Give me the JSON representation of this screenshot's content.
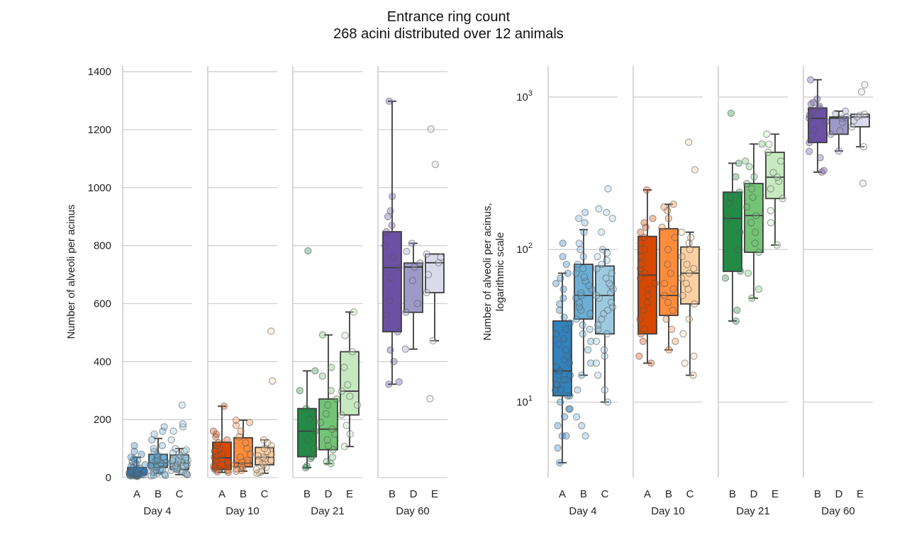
{
  "title": [
    "Entrance ring count",
    "268 acini distributed over 12 animals"
  ],
  "chart_data": [
    {
      "type": "box",
      "scale": "linear",
      "ylabel": "Number of alveoli per acinus",
      "ylim": [
        0,
        1420
      ],
      "yticks": [
        0,
        200,
        400,
        600,
        800,
        1000,
        1200,
        1400
      ],
      "ytick_labels": [
        "0",
        "200",
        "400",
        "600",
        "800",
        "1000",
        "1200",
        "1400"
      ],
      "grid": true
    },
    {
      "type": "box",
      "scale": "log",
      "ylabel": [
        "Number of alveoli per acinus,",
        "logarithmic scale"
      ],
      "ylim": [
        3.2,
        1600
      ],
      "yticks": [
        10,
        100,
        1000
      ],
      "ytick_labels": [
        "10",
        "10",
        "10"
      ],
      "ytick_exponents": [
        "1",
        "2",
        "3"
      ],
      "grid": true
    }
  ],
  "panels": [
    {
      "day": "Day 4",
      "groups": [
        {
          "label": "A",
          "color": "#3182bd",
          "stats": {
            "whislo": 4,
            "q1": 11,
            "med": 16,
            "q3": 34,
            "whishi": 70
          },
          "points": [
            4,
            5,
            6,
            6,
            7,
            8,
            9,
            9,
            10,
            11,
            11,
            12,
            12,
            13,
            13,
            14,
            14,
            15,
            15,
            16,
            16,
            17,
            18,
            19,
            20,
            22,
            24,
            26,
            28,
            30,
            33,
            36,
            40,
            44,
            48,
            55,
            60,
            65,
            70,
            80,
            90,
            110
          ]
        },
        {
          "label": "B",
          "color": "#6baed6",
          "stats": {
            "whislo": 15,
            "q1": 35,
            "med": 50,
            "q3": 80,
            "whishi": 135
          },
          "points": [
            6,
            7,
            8,
            12,
            15,
            18,
            22,
            25,
            28,
            30,
            32,
            35,
            38,
            40,
            42,
            45,
            48,
            50,
            52,
            55,
            58,
            62,
            66,
            70,
            75,
            80,
            90,
            100,
            110,
            130,
            150,
            160,
            175
          ]
        },
        {
          "label": "C",
          "color": "#9ecae1",
          "stats": {
            "whislo": 10,
            "q1": 28,
            "med": 50,
            "q3": 78,
            "whishi": 100
          },
          "points": [
            10,
            12,
            15,
            18,
            20,
            22,
            25,
            28,
            30,
            32,
            35,
            38,
            40,
            42,
            45,
            48,
            50,
            52,
            55,
            58,
            60,
            65,
            70,
            75,
            80,
            85,
            90,
            95,
            100,
            130,
            160,
            175,
            185,
            250
          ]
        }
      ]
    },
    {
      "day": "Day 10",
      "groups": [
        {
          "label": "A",
          "color": "#d94801",
          "stats": {
            "whislo": 18,
            "q1": 28,
            "med": 68,
            "q3": 122,
            "whishi": 246
          },
          "points": [
            18,
            20,
            25,
            28,
            30,
            35,
            40,
            45,
            50,
            55,
            60,
            65,
            70,
            75,
            80,
            90,
            100,
            110,
            120,
            130,
            140,
            150,
            160,
            246
          ]
        },
        {
          "label": "B",
          "color": "#fd8d3c",
          "stats": {
            "whislo": 22,
            "q1": 37,
            "med": 50,
            "q3": 137,
            "whishi": 198
          },
          "points": [
            22,
            25,
            30,
            35,
            40,
            45,
            50,
            55,
            60,
            70,
            80,
            100,
            120,
            140,
            160,
            180,
            190,
            198
          ]
        },
        {
          "label": "C",
          "color": "#fdd0a2",
          "stats": {
            "whislo": 15,
            "q1": 44,
            "med": 70,
            "q3": 104,
            "whishi": 130
          },
          "points": [
            15,
            18,
            20,
            28,
            35,
            44,
            50,
            55,
            60,
            65,
            70,
            75,
            80,
            90,
            100,
            110,
            120,
            130,
            333,
            505
          ]
        }
      ]
    },
    {
      "day": "Day 21",
      "groups": [
        {
          "label": "B",
          "color": "#238b45",
          "stats": {
            "whislo": 34,
            "q1": 72,
            "med": 160,
            "q3": 238,
            "whishi": 368
          },
          "points": [
            34,
            40,
            65,
            72,
            100,
            130,
            160,
            200,
            220,
            238,
            300,
            368,
            782
          ]
        },
        {
          "label": "D",
          "color": "#74c476",
          "stats": {
            "whislo": 48,
            "q1": 96,
            "med": 167,
            "q3": 271,
            "whishi": 492
          },
          "points": [
            48,
            55,
            70,
            96,
            110,
            130,
            150,
            167,
            190,
            220,
            250,
            271,
            300,
            350,
            380,
            492
          ]
        },
        {
          "label": "E",
          "color": "#c7e9c0",
          "stats": {
            "whislo": 107,
            "q1": 216,
            "med": 298,
            "q3": 434,
            "whishi": 571
          },
          "points": [
            107,
            150,
            180,
            216,
            250,
            280,
            298,
            320,
            380,
            434,
            490,
            571
          ]
        }
      ]
    },
    {
      "day": "Day 60",
      "groups": [
        {
          "label": "B",
          "color": "#6a51a3",
          "stats": {
            "whislo": 322,
            "q1": 503,
            "med": 724,
            "q3": 848,
            "whishi": 1298
          },
          "points": [
            322,
            330,
            400,
            440,
            503,
            560,
            610,
            690,
            724,
            760,
            800,
            848,
            870,
            900,
            920,
            970,
            1298
          ]
        },
        {
          "label": "D",
          "color": "#9e9ac8",
          "stats": {
            "whislo": 443,
            "q1": 570,
            "med": 726,
            "q3": 740,
            "whishi": 808
          },
          "points": [
            443,
            570,
            600,
            680,
            726,
            740,
            780,
            808
          ]
        },
        {
          "label": "E",
          "color": "#dadaeb",
          "stats": {
            "whislo": 472,
            "q1": 638,
            "med": 741,
            "q3": 771,
            "whishi": 771
          },
          "points": [
            272,
            472,
            638,
            700,
            741,
            760,
            771,
            1080,
            1202
          ]
        }
      ]
    }
  ]
}
